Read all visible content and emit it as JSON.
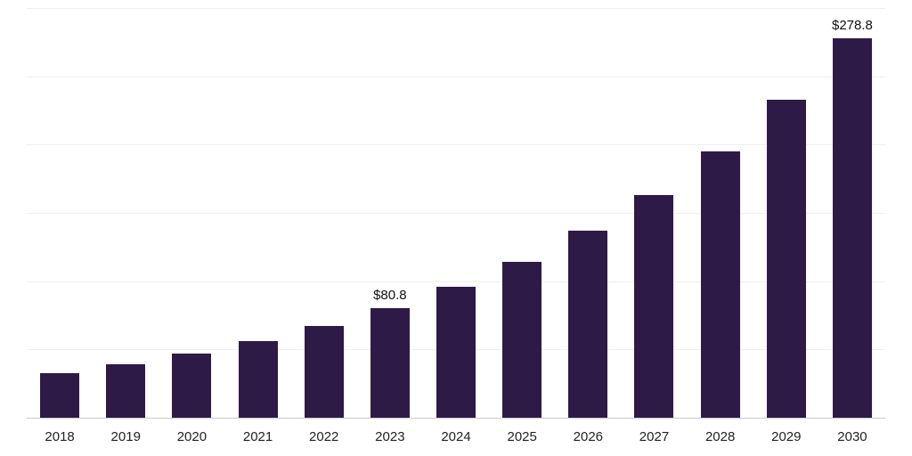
{
  "chart_data": {
    "type": "bar",
    "title": "",
    "xlabel": "",
    "ylabel": "",
    "categories": [
      "2018",
      "2019",
      "2020",
      "2021",
      "2022",
      "2023",
      "2024",
      "2025",
      "2026",
      "2027",
      "2028",
      "2029",
      "2030"
    ],
    "values": [
      33.4,
      39.9,
      47.6,
      56.8,
      67.7,
      80.8,
      96.4,
      115.1,
      137.4,
      163.9,
      195.7,
      233.5,
      278.8
    ],
    "value_labels": [
      "",
      "",
      "",
      "",
      "",
      "$80.8",
      "",
      "",
      "",
      "",
      "",
      "",
      "$278.8"
    ],
    "ylim": [
      0,
      300
    ],
    "gridlines": [
      50,
      100,
      150,
      200,
      250,
      300
    ],
    "grid_on": true,
    "legend_position": "none",
    "colors": {
      "bar": "#2e1a47",
      "grid": "#efefef",
      "axis": "#c9c9c9",
      "value_label_text": "#111111",
      "axis_label_text": "#222222",
      "background": "#ffffff"
    }
  }
}
